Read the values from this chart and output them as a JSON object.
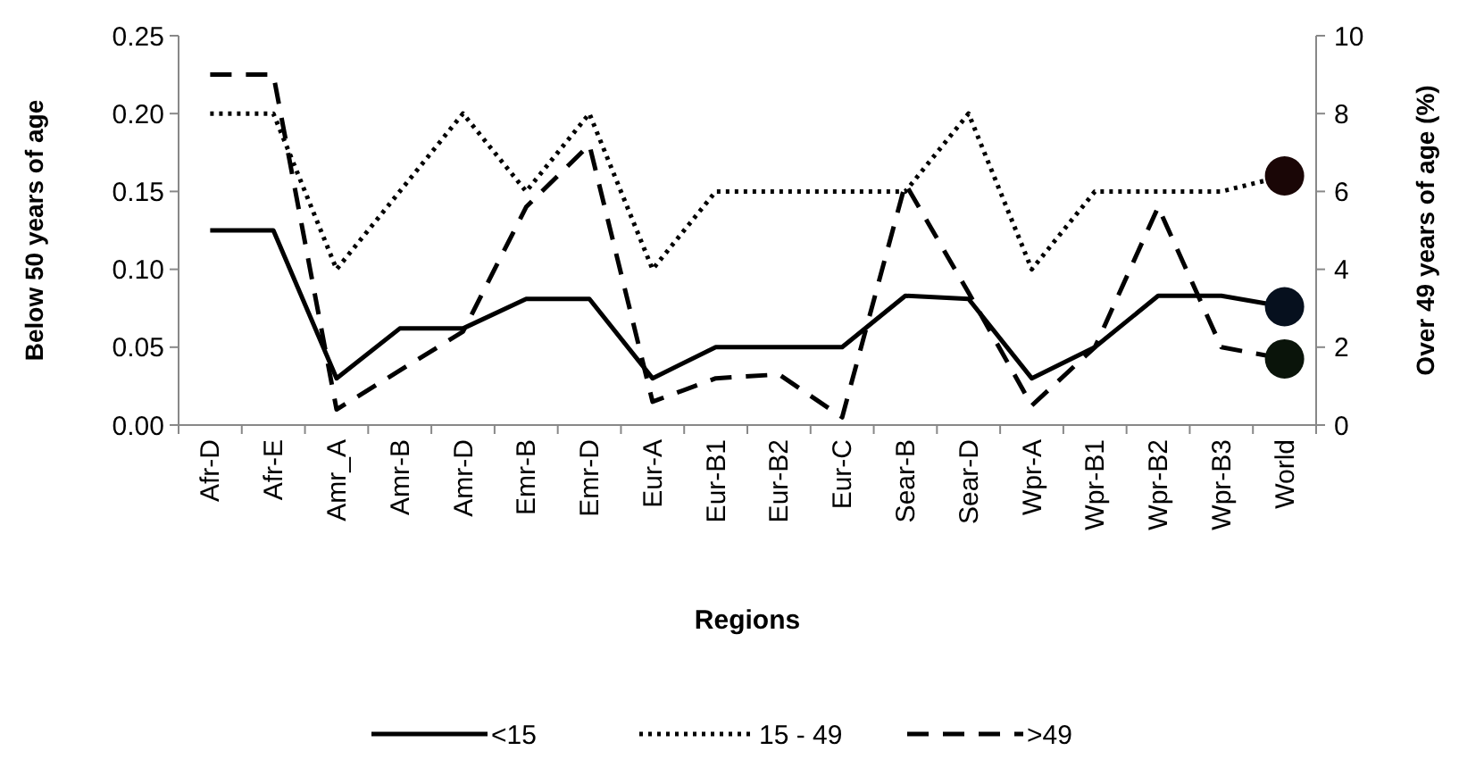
{
  "chart_data": {
    "type": "line",
    "xlabel": "Regions",
    "ylabel": "Below 50 years of age",
    "y2label": "Over 49 years of age (%)",
    "categories": [
      "Afr-D",
      "Afr-E",
      "Amr_A",
      "Amr-B",
      "Amr-D",
      "Emr-B",
      "Emr-D",
      "Eur-A",
      "Eur-B1",
      "Eur-B2",
      "Eur-C",
      "Sear-B",
      "Sear-D",
      "Wpr-A",
      "Wpr-B1",
      "Wpr-B2",
      "Wpr-B3",
      "World"
    ],
    "series": [
      {
        "name": "<15",
        "color": "#000000",
        "line_style": "solid",
        "values": [
          0.125,
          0.125,
          0.03,
          0.062,
          0.062,
          0.081,
          0.081,
          0.03,
          0.05,
          0.05,
          0.05,
          0.083,
          0.081,
          0.03,
          0.05,
          0.083,
          0.083,
          0.076
        ]
      },
      {
        "name": "15 - 49",
        "color": "#000000",
        "line_style": "dotted",
        "values": [
          0.2,
          0.2,
          0.1,
          0.15,
          0.2,
          0.15,
          0.2,
          0.1,
          0.15,
          0.15,
          0.15,
          0.15,
          0.2,
          0.1,
          0.15,
          0.15,
          0.15,
          0.16
        ]
      },
      {
        "name": ">49",
        "color": "#000000",
        "line_style": "dashed",
        "axis": "y2",
        "values": [
          9,
          9,
          0.4,
          1.4,
          2.4,
          5.6,
          7.2,
          0.6,
          1.2,
          1.3,
          0.2,
          6.2,
          3.4,
          0.5,
          2.0,
          5.6,
          2.0,
          1.7
        ]
      },
      {
        "type": "scatter",
        "x": [
          "World"
        ],
        "color": "#1a0606",
        "marker": "circle",
        "values": [
          0.16
        ]
      },
      {
        "type": "scatter",
        "x": [
          "World"
        ],
        "color": "#06101e",
        "marker": "circle",
        "values": [
          0.076
        ]
      },
      {
        "type": "scatter",
        "x": [
          "World"
        ],
        "color": "#0a140a",
        "marker": "circle",
        "axis": "y2",
        "values": [
          1.7
        ]
      }
    ],
    "ylim": [
      0,
      0.25
    ],
    "yticks": [
      {
        "value": 0,
        "label": "0.00"
      },
      {
        "value": 0.05,
        "label": "0.05"
      },
      {
        "value": 0.1,
        "label": "0.10"
      },
      {
        "value": 0.15,
        "label": "0.15"
      },
      {
        "value": 0.2,
        "label": "0.20"
      },
      {
        "value": 0.25,
        "label": "0.25"
      }
    ],
    "y2lim": [
      0,
      10
    ],
    "y2ticks": [
      0,
      2,
      4,
      6,
      8,
      10
    ],
    "grid": false,
    "legend": "bottom"
  }
}
